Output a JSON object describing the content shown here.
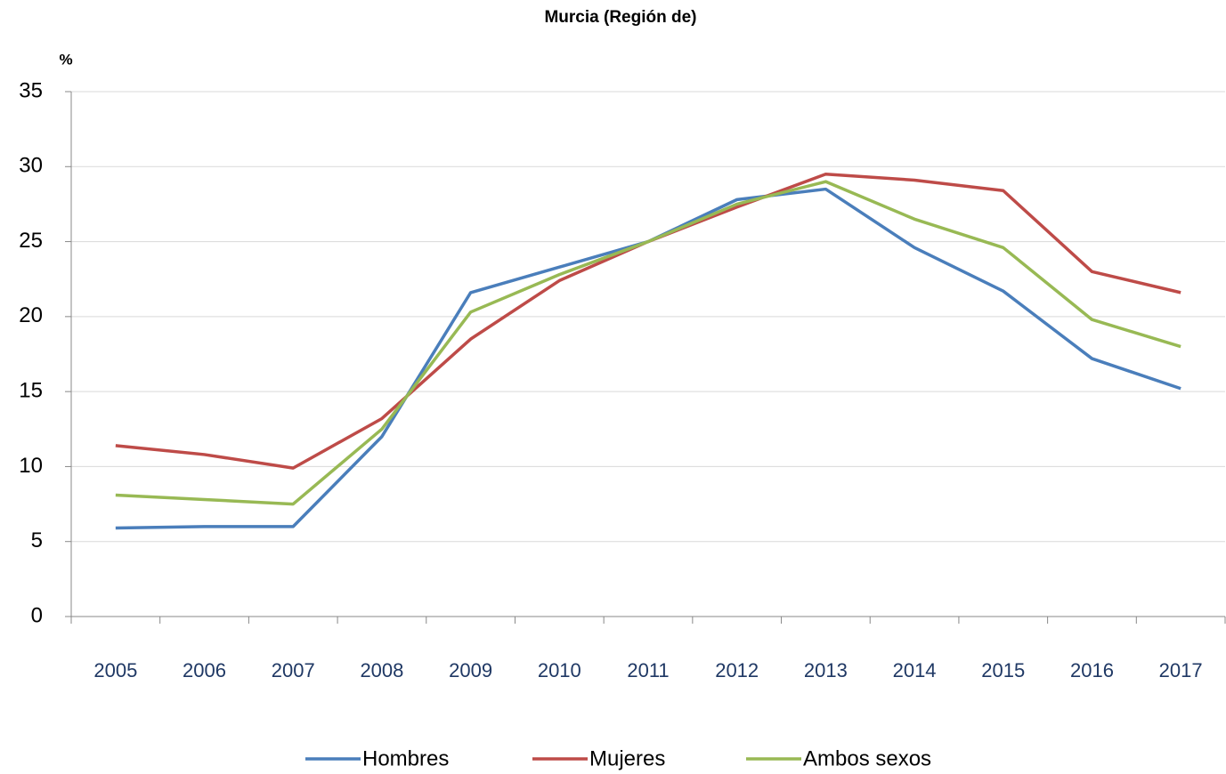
{
  "chart_data": {
    "type": "line",
    "title": "Murcia (Región de)",
    "y_label": "%",
    "categories": [
      "2005",
      "2006",
      "2007",
      "2008",
      "2009",
      "2010",
      "2011",
      "2012",
      "2013",
      "2014",
      "2015",
      "2016",
      "2017"
    ],
    "series": [
      {
        "name": "Hombres",
        "color": "#4a7ebb",
        "values": [
          5.9,
          6.0,
          6.0,
          12.0,
          21.6,
          23.3,
          25.0,
          27.8,
          28.5,
          24.6,
          21.7,
          17.2,
          15.2
        ]
      },
      {
        "name": "Mujeres",
        "color": "#be4b48",
        "values": [
          11.4,
          10.8,
          9.9,
          13.2,
          18.5,
          22.4,
          25.0,
          27.3,
          29.5,
          29.1,
          28.4,
          23.0,
          21.6
        ]
      },
      {
        "name": "Ambos sexos",
        "color": "#98b954",
        "values": [
          8.1,
          7.8,
          7.5,
          12.5,
          20.3,
          22.8,
          25.0,
          27.5,
          29.0,
          26.5,
          24.6,
          19.8,
          18.0
        ]
      }
    ],
    "ylim": [
      0,
      35
    ],
    "yticks": [
      0,
      5,
      10,
      15,
      20,
      25,
      30,
      35
    ],
    "grid": true,
    "legend": "bottom"
  }
}
